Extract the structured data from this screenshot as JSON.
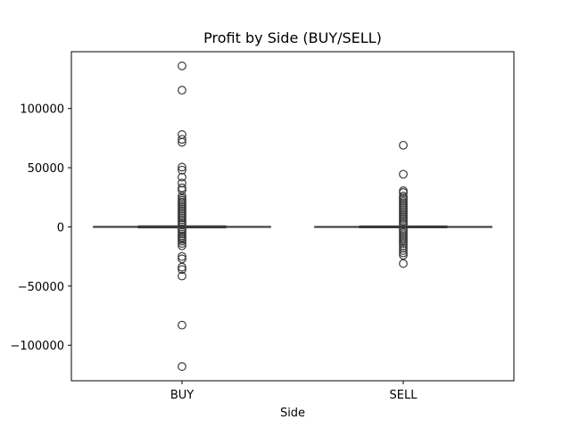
{
  "chart_data": {
    "type": "box",
    "title": "Profit by Side (BUY/SELL)",
    "xlabel": "Side",
    "ylabel": "",
    "categories": [
      "BUY",
      "SELL"
    ],
    "y_ticks": [
      -100000,
      -50000,
      0,
      50000,
      100000
    ],
    "y_tick_labels": [
      "−100000",
      "−50000",
      "0",
      "50000",
      "100000"
    ],
    "ylim": [
      -130000,
      148000
    ],
    "grid": false,
    "box_color": "#3a3a3a",
    "series": [
      {
        "category": "BUY",
        "q1": -300,
        "median": 0,
        "q3": 300,
        "whisker_low": -800,
        "whisker_high": 800,
        "outliers": [
          136000,
          115500,
          78000,
          74000,
          71500,
          50500,
          48000,
          42000,
          37000,
          33000,
          31000,
          26000,
          24000,
          22500,
          21000,
          19500,
          18000,
          16500,
          15000,
          13500,
          12000,
          10500,
          9000,
          7500,
          6000,
          4500,
          3000,
          1800,
          -1800,
          -3000,
          -4500,
          -6000,
          -7500,
          -9000,
          -10500,
          -12000,
          -14000,
          -16000,
          -25000,
          -27000,
          -34000,
          -36000,
          -41500,
          -83000,
          -118000
        ]
      },
      {
        "category": "SELL",
        "q1": -250,
        "median": 0,
        "q3": 250,
        "whisker_low": -700,
        "whisker_high": 700,
        "outliers": [
          69000,
          44500,
          30500,
          29000,
          26000,
          24500,
          23000,
          21500,
          20000,
          18500,
          17000,
          15500,
          14000,
          12500,
          11000,
          9500,
          8000,
          6500,
          5000,
          3500,
          2000,
          -2000,
          -3500,
          -5000,
          -6500,
          -8000,
          -9500,
          -11000,
          -12500,
          -14000,
          -16000,
          -18000,
          -20000,
          -22000,
          -24000,
          -31000
        ]
      }
    ]
  }
}
